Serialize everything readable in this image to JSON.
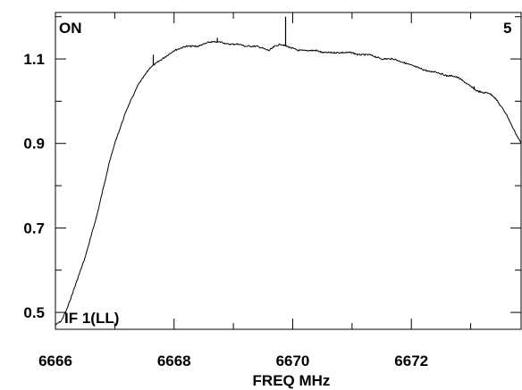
{
  "chart_data": {
    "type": "line",
    "title": "",
    "xlabel": "FREQ MHz",
    "ylabel": "",
    "xlim": [
      6666,
      6673.85
    ],
    "ylim": [
      0.46,
      1.21
    ],
    "grid": false,
    "legend": "none",
    "line_color": "#000000",
    "annotations": {
      "top_left": "ON",
      "top_right": "5",
      "bottom_left": "IF 1(LL)"
    },
    "x_ticks": [
      {
        "value": 6666,
        "label": "6666"
      },
      {
        "value": 6668,
        "label": "6668"
      },
      {
        "value": 6670,
        "label": "6670"
      },
      {
        "value": 6672,
        "label": "6672"
      }
    ],
    "x_minor_ticks": [
      6667,
      6669,
      6671,
      6673
    ],
    "y_ticks": [
      {
        "value": 0.5,
        "label": "0.5"
      },
      {
        "value": 0.7,
        "label": "0.7"
      },
      {
        "value": 0.9,
        "label": "0.9"
      },
      {
        "value": 1.1,
        "label": "1.1"
      }
    ],
    "y_minor_ticks": [
      0.6,
      0.8,
      1.0,
      1.2
    ],
    "series": [
      {
        "x": [
          6666.0,
          6666.1,
          6666.2,
          6666.3,
          6666.4,
          6666.5,
          6666.6,
          6666.7,
          6666.8,
          6666.9,
          6667.0,
          6667.1,
          6667.2,
          6667.3,
          6667.4,
          6667.5,
          6667.6,
          6667.7,
          6667.8,
          6667.9,
          6668.0,
          6668.1,
          6668.2,
          6668.3,
          6668.4,
          6668.5,
          6668.6,
          6668.7,
          6668.8,
          6668.9,
          6669.0,
          6669.1,
          6669.2,
          6669.3,
          6669.4,
          6669.5,
          6669.6,
          6669.7,
          6669.8,
          6669.9,
          6670.0,
          6670.1,
          6670.2,
          6670.3,
          6670.4,
          6670.5,
          6670.6,
          6670.7,
          6670.8,
          6670.9,
          6671.0,
          6671.1,
          6671.2,
          6671.3,
          6671.4,
          6671.5,
          6671.6,
          6671.7,
          6671.8,
          6671.9,
          6672.0,
          6672.1,
          6672.2,
          6672.3,
          6672.4,
          6672.5,
          6672.6,
          6672.7,
          6672.8,
          6672.9,
          6673.0,
          6673.1,
          6673.2,
          6673.3,
          6673.4,
          6673.5,
          6673.6,
          6673.7,
          6673.85
        ],
        "y": [
          0.47,
          0.48,
          0.51,
          0.55,
          0.59,
          0.63,
          0.68,
          0.73,
          0.79,
          0.85,
          0.9,
          0.94,
          0.98,
          1.01,
          1.04,
          1.06,
          1.08,
          1.09,
          1.1,
          1.11,
          1.12,
          1.125,
          1.13,
          1.13,
          1.13,
          1.135,
          1.14,
          1.14,
          1.14,
          1.135,
          1.135,
          1.135,
          1.13,
          1.13,
          1.13,
          1.125,
          1.12,
          1.13,
          1.135,
          1.13,
          1.125,
          1.12,
          1.12,
          1.12,
          1.12,
          1.115,
          1.115,
          1.115,
          1.115,
          1.115,
          1.115,
          1.11,
          1.11,
          1.11,
          1.105,
          1.1,
          1.1,
          1.1,
          1.095,
          1.09,
          1.085,
          1.08,
          1.075,
          1.07,
          1.07,
          1.065,
          1.06,
          1.06,
          1.055,
          1.045,
          1.035,
          1.025,
          1.02,
          1.02,
          1.01,
          0.99,
          0.97,
          0.94,
          0.9
        ],
        "spikes": [
          {
            "x": 6667.65,
            "y": 1.11
          },
          {
            "x": 6668.73,
            "y": 1.15
          },
          {
            "x": 6669.88,
            "y": 1.2
          },
          {
            "x": 6673.06,
            "y": 1.035
          }
        ]
      }
    ]
  }
}
